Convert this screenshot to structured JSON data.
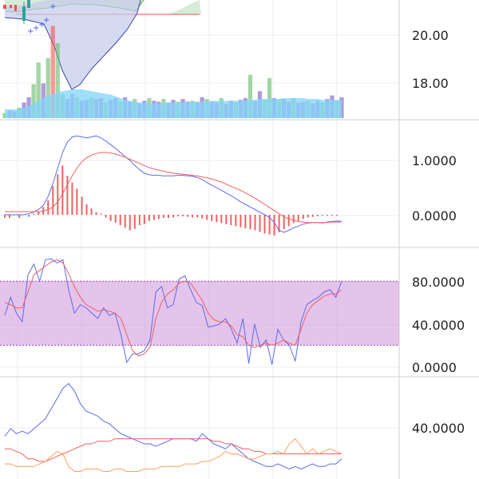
{
  "colors": {
    "up": "#26a69a",
    "down": "#ef5350",
    "vol_up": "#66bb6a",
    "vol_down": "#ef5350",
    "vol_neutral": "#7e57c2",
    "vol_ma_fill": "#81d4fa",
    "bb_fill": "#c5cae9",
    "cloud_fill": "#c8e6c9",
    "cloud_line": "#4caf50",
    "cloud_edge": "#ef5350",
    "marker": "#3d5afe",
    "line_blue": "#5c6bf0",
    "line_red": "#f06060",
    "line_orange": "#ff9e5e",
    "band_fill": "#ce93d8",
    "band_edge": "#ab47bc",
    "grid": "#eeeeee",
    "separator": "#d8d8d8",
    "axis_text": "#222222"
  },
  "chart_data": [
    {
      "type": "candlestick",
      "panel": "price",
      "y_ticks": [
        "20.00",
        "18.00"
      ],
      "ylim": [
        16.0,
        24.0
      ],
      "volume_overlay": [
        0.6,
        0.9,
        0.8,
        1.2,
        1.8,
        2.4,
        3.9,
        6.4,
        4.0,
        6.9,
        10.6,
        8.6,
        2.8,
        2.2,
        2.8,
        2.4,
        2.0,
        2.1,
        2.4,
        2.2,
        2.3,
        1.8,
        2.1,
        2.3,
        1.9,
        2.4,
        1.9,
        2.2,
        1.7,
        2.0,
        2.3,
        2.0,
        1.9,
        2.2,
        1.8,
        2.1,
        1.9,
        2.2,
        1.9,
        2.0,
        1.8,
        2.4,
        2.2,
        1.9,
        1.8,
        2.3,
        1.6,
        2.0,
        1.8,
        2.1,
        2.3,
        5.0,
        2.0,
        3.1,
        2.1,
        4.6,
        2.3,
        2.2,
        2.2,
        1.9,
        2.3,
        1.8,
        1.9,
        2.0,
        1.7,
        2.0,
        1.8,
        2.2,
        2.6,
        2.0,
        2.4
      ],
      "volume_ma": [
        1.0,
        1.0,
        1.0,
        1.1,
        1.2,
        1.4,
        1.7,
        2.0,
        2.3,
        2.6,
        2.8,
        3.0,
        3.1,
        3.2,
        3.3,
        3.3,
        3.3,
        3.2,
        3.1,
        3.0,
        2.9,
        2.8,
        2.7,
        2.5,
        2.3,
        2.1,
        2.0,
        1.9,
        1.8,
        1.8,
        1.7,
        1.7,
        1.7,
        1.7,
        1.8,
        1.8,
        1.8,
        1.8,
        1.8,
        1.9,
        1.9,
        1.9,
        1.9,
        2.0,
        2.0,
        2.0,
        2.0,
        2.0,
        2.0,
        2.0,
        2.0,
        2.1,
        2.1,
        2.2,
        2.2,
        2.2,
        2.2,
        2.2,
        2.3,
        2.3,
        2.3,
        2.3,
        2.3,
        2.2,
        2.2,
        2.2,
        2.1,
        2.1,
        2.1,
        2.1,
        2.1
      ]
    },
    {
      "type": "line",
      "panel": "macd",
      "y_ticks": [
        "1.0000",
        "0.0000"
      ],
      "ylim": [
        -0.6,
        1.8
      ],
      "series": [
        {
          "values": [
            0.0,
            0.0,
            0.0,
            0.0,
            0.0,
            0.02,
            0.05,
            0.1,
            0.18,
            0.35,
            0.6,
            0.9,
            1.2,
            1.4,
            1.5,
            1.52,
            1.5,
            1.48,
            1.5,
            1.52,
            1.48,
            1.42,
            1.35,
            1.28,
            1.2,
            1.12,
            1.05,
            0.95,
            0.87,
            0.8,
            0.77,
            0.76,
            0.76,
            0.75,
            0.75,
            0.75,
            0.76,
            0.76,
            0.75,
            0.74,
            0.72,
            0.68,
            0.62,
            0.57,
            0.52,
            0.47,
            0.42,
            0.37,
            0.31,
            0.25,
            0.2,
            0.15,
            0.1,
            0.05,
            0.0,
            -0.05,
            -0.15,
            -0.3,
            -0.34,
            -0.3,
            -0.25,
            -0.22,
            -0.18,
            -0.16,
            -0.15,
            -0.15,
            -0.16,
            -0.14,
            -0.13,
            -0.12,
            -0.13
          ]
        },
        {
          "values": [
            0.06,
            0.06,
            0.06,
            0.06,
            0.06,
            0.06,
            0.06,
            0.06,
            0.07,
            0.1,
            0.15,
            0.25,
            0.4,
            0.58,
            0.75,
            0.9,
            1.02,
            1.1,
            1.15,
            1.18,
            1.2,
            1.2,
            1.19,
            1.17,
            1.14,
            1.11,
            1.07,
            1.03,
            0.99,
            0.95,
            0.91,
            0.88,
            0.86,
            0.84,
            0.82,
            0.8,
            0.79,
            0.78,
            0.77,
            0.76,
            0.75,
            0.73,
            0.71,
            0.69,
            0.66,
            0.63,
            0.59,
            0.55,
            0.51,
            0.47,
            0.42,
            0.37,
            0.32,
            0.26,
            0.2,
            0.14,
            0.08,
            0.02,
            -0.04,
            -0.08,
            -0.11,
            -0.13,
            -0.14,
            -0.15,
            -0.15,
            -0.15,
            -0.15,
            -0.15,
            -0.14,
            -0.14,
            -0.14
          ]
        },
        {
          "values": [
            -0.06,
            -0.06,
            0.0,
            -0.06,
            0.0,
            -0.04,
            0.02,
            0.06,
            0.15,
            0.28,
            0.55,
            0.78,
            0.95,
            0.75,
            0.62,
            0.5,
            0.35,
            0.2,
            0.12,
            0.05,
            0.02,
            -0.05,
            -0.12,
            -0.15,
            -0.2,
            -0.25,
            -0.3,
            -0.27,
            -0.2,
            -0.18,
            -0.12,
            -0.1,
            -0.08,
            -0.06,
            -0.06,
            -0.05,
            -0.03,
            -0.03,
            -0.04,
            -0.05,
            -0.05,
            -0.07,
            -0.1,
            -0.12,
            -0.14,
            -0.16,
            -0.18,
            -0.2,
            -0.22,
            -0.24,
            -0.26,
            -0.28,
            -0.3,
            -0.33,
            -0.36,
            -0.38,
            -0.4,
            -0.34,
            -0.28,
            -0.22,
            -0.16,
            -0.12,
            -0.08,
            -0.05,
            -0.04,
            -0.03,
            -0.02,
            -0.02,
            -0.02,
            -0.02,
            0.0
          ]
        }
      ]
    },
    {
      "type": "line",
      "panel": "stochastic",
      "y_ticks": [
        "80.0000",
        "40.0000",
        "0.0000"
      ],
      "ylim": [
        -8,
        110
      ],
      "band": [
        20,
        80
      ],
      "series": [
        {
          "values": [
            48,
            65,
            50,
            42,
            86,
            96,
            80,
            100,
            101,
            97,
            100,
            72,
            50,
            58,
            55,
            50,
            45,
            55,
            48,
            50,
            30,
            4,
            12,
            12,
            15,
            25,
            70,
            75,
            55,
            58,
            82,
            85,
            72,
            60,
            57,
            37,
            38,
            40,
            45,
            35,
            22,
            45,
            3,
            40,
            18,
            25,
            2,
            35,
            25,
            20,
            5,
            42,
            58,
            62,
            65,
            70,
            72,
            65,
            80
          ]
        },
        {
          "values": [
            60,
            58,
            55,
            55,
            70,
            86,
            90,
            94,
            98,
            100,
            97,
            87,
            75,
            65,
            58,
            55,
            52,
            53,
            52,
            50,
            45,
            30,
            15,
            10,
            12,
            18,
            45,
            60,
            68,
            72,
            78,
            80,
            78,
            70,
            62,
            50,
            44,
            42,
            42,
            38,
            30,
            28,
            20,
            18,
            20,
            22,
            20,
            22,
            25,
            22,
            20,
            35,
            50,
            58,
            62,
            66,
            68,
            68,
            72
          ]
        }
      ]
    },
    {
      "type": "line",
      "panel": "directional",
      "y_ticks": [
        "40.0000"
      ],
      "ylim": [
        20,
        60
      ],
      "series": [
        {
          "values": [
            37,
            40,
            38,
            39,
            38,
            40,
            42,
            44,
            48,
            52,
            56,
            58,
            55,
            50,
            47,
            46,
            45,
            43,
            42,
            40,
            38,
            37,
            36,
            35,
            34,
            34,
            33,
            34,
            35,
            36,
            36,
            36,
            36,
            35,
            38,
            36,
            34,
            33,
            32,
            34,
            32,
            30,
            28,
            27,
            26,
            25,
            25,
            26,
            25,
            24,
            25,
            24,
            25,
            26,
            25,
            25,
            26,
            26,
            28
          ]
        },
        {
          "values": [
            32,
            32,
            31,
            30,
            28,
            28,
            27,
            27,
            28,
            29,
            30,
            31,
            32,
            33,
            34,
            34,
            35,
            35,
            35,
            36,
            36,
            36,
            36,
            36,
            36,
            36,
            36,
            36,
            36,
            36,
            36,
            36,
            36,
            36,
            36,
            36,
            35,
            35,
            34,
            34,
            33,
            32,
            32,
            31,
            31,
            30,
            30,
            30,
            30,
            30,
            30,
            30,
            30,
            30,
            30,
            30,
            30,
            30,
            30
          ]
        },
        {
          "values": [
            26,
            26,
            25,
            25,
            25,
            25,
            26,
            27,
            29,
            31,
            30,
            25,
            23,
            23,
            24,
            24,
            24,
            23,
            23,
            24,
            24,
            23,
            23,
            23,
            24,
            24,
            24,
            25,
            25,
            25,
            25,
            26,
            26,
            26,
            27,
            27,
            28,
            29,
            31,
            30,
            30,
            29,
            28,
            28,
            29,
            30,
            30,
            31,
            30,
            34,
            36,
            33,
            30,
            32,
            30,
            31,
            32,
            31,
            30
          ]
        }
      ]
    }
  ]
}
